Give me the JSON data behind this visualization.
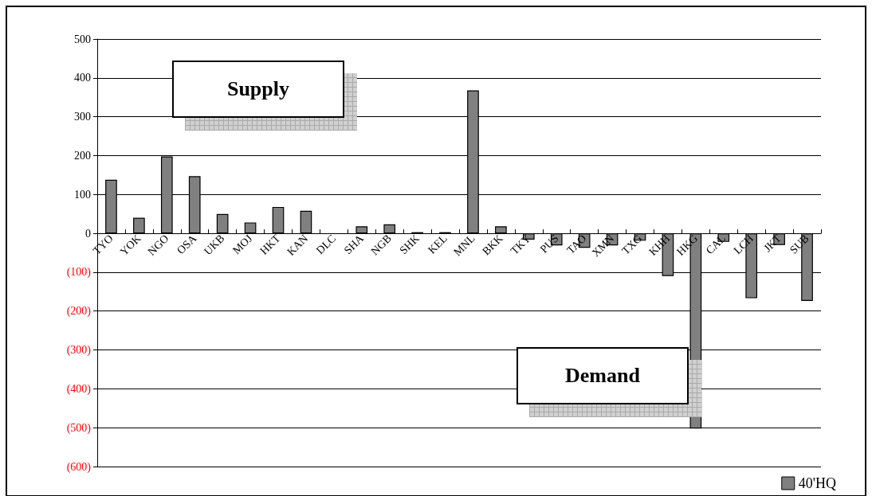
{
  "chart_data": {
    "type": "bar",
    "categories": [
      "TYO",
      "YOK",
      "NGO",
      "OSA",
      "UKB",
      "MOJ",
      "HKT",
      "KAN",
      "DLC",
      "SHA",
      "NGB",
      "SHK",
      "KEL",
      "MNL",
      "BKK",
      "TKY",
      "PUS",
      "TAO",
      "XMN",
      "TXG",
      "KHH",
      "HKG",
      "CAL",
      "LCH",
      "JKT",
      "SUB"
    ],
    "series": [
      {
        "name": "40'HQ",
        "color": "#808080",
        "values": [
          138,
          40,
          198,
          147,
          50,
          28,
          68,
          58,
          0,
          18,
          23,
          3,
          3,
          368,
          18,
          -16,
          -31,
          -37,
          -31,
          -19,
          -110,
          -502,
          -22,
          -167,
          -30,
          -174
        ]
      }
    ],
    "ylim": [
      -600,
      500
    ],
    "yticks": [
      {
        "value": -600,
        "label": "(600)"
      },
      {
        "value": -500,
        "label": "(500)"
      },
      {
        "value": -400,
        "label": "(400)"
      },
      {
        "value": -300,
        "label": "(300)"
      },
      {
        "value": -200,
        "label": "(200)"
      },
      {
        "value": -100,
        "label": "(100)"
      },
      0,
      100,
      200,
      300,
      400,
      500
    ],
    "grid": "y",
    "legend": "bottom right",
    "annotations": [
      "Supply",
      "Demand"
    ]
  }
}
